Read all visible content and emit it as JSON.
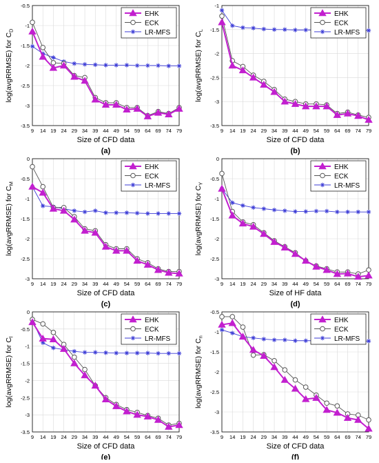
{
  "figure": {
    "panels_note": "",
    "colors": {
      "EHK": "#c21fcf",
      "ECK": "#555555",
      "LR-MFS": "#3b3bd6",
      "grid": "#d9d9d9",
      "axis": "#000000"
    }
  },
  "chart_data": [
    {
      "id": "a",
      "type": "line",
      "panel_label": "(a)",
      "ylabel_prefix": "log(avgRRMSE) for C",
      "ylabel_sub": "D",
      "xlabel": "Size of CFD data",
      "x": [
        9,
        14,
        19,
        24,
        29,
        34,
        39,
        44,
        49,
        54,
        59,
        64,
        69,
        74,
        79
      ],
      "xlim": [
        9,
        79
      ],
      "ylim": [
        -3.5,
        -0.5
      ],
      "yticks": [
        -3.5,
        -3,
        -2.5,
        -2,
        -1.5,
        -1,
        -0.5
      ],
      "ytick_labels": [
        "-3.5",
        "-3",
        "-2.5",
        "-2",
        "-1.5",
        "-1",
        "-0.5"
      ],
      "legend": "top-right",
      "grid": true,
      "series": [
        {
          "name": "EHK",
          "marker": "triangle",
          "values": [
            -1.15,
            -1.78,
            -2.06,
            -2.0,
            -2.28,
            -2.38,
            -2.85,
            -2.98,
            -2.98,
            -3.1,
            -3.08,
            -3.27,
            -3.18,
            -3.22,
            -3.08
          ]
        },
        {
          "name": "ECK",
          "marker": "circle",
          "values": [
            -0.92,
            -1.55,
            -1.93,
            -1.95,
            -2.25,
            -2.3,
            -2.8,
            -2.93,
            -2.93,
            -3.05,
            -3.05,
            -3.25,
            -3.15,
            -3.2,
            -3.05
          ]
        },
        {
          "name": "LR-MFS",
          "marker": "star",
          "values": [
            -1.52,
            -1.7,
            -1.8,
            -1.9,
            -1.95,
            -1.97,
            -1.98,
            -1.99,
            -1.99,
            -1.99,
            -2.0,
            -2.0,
            -2.0,
            -2.01,
            -2.01
          ]
        }
      ]
    },
    {
      "id": "b",
      "type": "line",
      "panel_label": "(b)",
      "ylabel_prefix": "log(avgRRMSE) for C",
      "ylabel_sub": "L",
      "xlabel": "Size of CFD data",
      "x": [
        9,
        14,
        19,
        24,
        29,
        34,
        39,
        44,
        49,
        54,
        59,
        64,
        69,
        74,
        79
      ],
      "xlim": [
        9,
        79
      ],
      "ylim": [
        -3.5,
        -1
      ],
      "yticks": [
        -3.5,
        -3,
        -2.5,
        -2,
        -1.5,
        -1
      ],
      "ytick_labels": [
        "-3.5",
        "-3",
        "-2.5",
        "-2",
        "-1.5",
        "-1"
      ],
      "legend": "top-right",
      "grid": true,
      "series": [
        {
          "name": "EHK",
          "marker": "triangle",
          "values": [
            -1.35,
            -2.25,
            -2.35,
            -2.5,
            -2.65,
            -2.8,
            -3.0,
            -3.05,
            -3.1,
            -3.1,
            -3.1,
            -3.28,
            -3.25,
            -3.3,
            -3.38
          ]
        },
        {
          "name": "ECK",
          "marker": "circle",
          "values": [
            -1.22,
            -2.15,
            -2.27,
            -2.45,
            -2.58,
            -2.75,
            -2.95,
            -3.0,
            -3.05,
            -3.05,
            -3.07,
            -3.25,
            -3.22,
            -3.28,
            -3.33
          ]
        },
        {
          "name": "LR-MFS",
          "marker": "star",
          "values": [
            -1.1,
            -1.42,
            -1.46,
            -1.47,
            -1.49,
            -1.5,
            -1.5,
            -1.51,
            -1.51,
            -1.51,
            -1.52,
            -1.52,
            -1.52,
            -1.52,
            -1.52
          ]
        }
      ]
    },
    {
      "id": "c",
      "type": "line",
      "panel_label": "(c)",
      "ylabel_prefix": "log(avgRRMSE) for C",
      "ylabel_sub": "M",
      "xlabel": "Size of CFD data",
      "x": [
        9,
        14,
        19,
        24,
        29,
        34,
        39,
        44,
        49,
        54,
        59,
        64,
        69,
        74,
        79
      ],
      "xlim": [
        9,
        79
      ],
      "ylim": [
        -3,
        0
      ],
      "yticks": [
        -3,
        -2.5,
        -2,
        -1.5,
        -1,
        -0.5,
        0
      ],
      "ytick_labels": [
        "-3",
        "-2.5",
        "-2",
        "-1.5",
        "-1",
        "-0.5",
        "0"
      ],
      "legend": "top-right",
      "grid": true,
      "series": [
        {
          "name": "EHK",
          "marker": "triangle",
          "values": [
            -0.7,
            -0.85,
            -1.25,
            -1.3,
            -1.52,
            -1.8,
            -1.85,
            -2.2,
            -2.3,
            -2.3,
            -2.55,
            -2.65,
            -2.78,
            -2.85,
            -2.87
          ]
        },
        {
          "name": "ECK",
          "marker": "circle",
          "values": [
            -0.2,
            -0.7,
            -1.22,
            -1.22,
            -1.45,
            -1.75,
            -1.8,
            -2.15,
            -2.25,
            -2.25,
            -2.5,
            -2.6,
            -2.75,
            -2.82,
            -2.82
          ]
        },
        {
          "name": "LR-MFS",
          "marker": "star",
          "values": [
            -0.7,
            -1.18,
            -1.2,
            -1.25,
            -1.3,
            -1.33,
            -1.3,
            -1.35,
            -1.35,
            -1.35,
            -1.36,
            -1.37,
            -1.37,
            -1.37,
            -1.37
          ]
        }
      ]
    },
    {
      "id": "d",
      "type": "line",
      "panel_label": "(d)",
      "ylabel_prefix": "log(avgRRMSE) for C",
      "ylabel_sub": "Y",
      "xlabel": "Size of HF data",
      "x": [
        9,
        14,
        19,
        24,
        29,
        34,
        39,
        44,
        49,
        54,
        59,
        64,
        69,
        74,
        79
      ],
      "xlim": [
        9,
        79
      ],
      "ylim": [
        -3,
        0
      ],
      "yticks": [
        -3,
        -2.5,
        -2,
        -1.5,
        -1,
        -0.5,
        0
      ],
      "ytick_labels": [
        "-3",
        "-2.5",
        "-2",
        "-1.5",
        "-1",
        "-0.5",
        "0"
      ],
      "legend": "top-right",
      "grid": true,
      "series": [
        {
          "name": "EHK",
          "marker": "triangle",
          "values": [
            -0.75,
            -1.42,
            -1.62,
            -1.7,
            -1.88,
            -2.08,
            -2.22,
            -2.38,
            -2.55,
            -2.7,
            -2.78,
            -2.88,
            -2.87,
            -2.95,
            -2.92
          ]
        },
        {
          "name": "ECK",
          "marker": "circle",
          "values": [
            -0.37,
            -1.32,
            -1.58,
            -1.65,
            -1.85,
            -2.05,
            -2.2,
            -2.35,
            -2.55,
            -2.68,
            -2.75,
            -2.83,
            -2.83,
            -2.88,
            -2.78
          ]
        },
        {
          "name": "LR-MFS",
          "marker": "star",
          "values": [
            -0.75,
            -1.1,
            -1.17,
            -1.22,
            -1.25,
            -1.28,
            -1.3,
            -1.32,
            -1.32,
            -1.31,
            -1.31,
            -1.33,
            -1.33,
            -1.33,
            -1.33
          ]
        }
      ]
    },
    {
      "id": "e",
      "type": "line",
      "panel_label": "(e)",
      "ylabel_prefix": "log(avgRRMSE) for C",
      "ylabel_sub": "l",
      "xlabel": "Size of CFD data",
      "x": [
        9,
        14,
        19,
        24,
        29,
        34,
        39,
        44,
        49,
        54,
        59,
        64,
        69,
        74,
        79
      ],
      "xlim": [
        9,
        79
      ],
      "ylim": [
        -3.5,
        0
      ],
      "yticks": [
        -3.5,
        -3,
        -2.5,
        -2,
        -1.5,
        -1,
        -0.5,
        0
      ],
      "ytick_labels": [
        "-3.5",
        "-3",
        "-2.5",
        "-2",
        "-1.5",
        "-1",
        "-0.5",
        "0"
      ],
      "legend": "top-right",
      "grid": true,
      "series": [
        {
          "name": "EHK",
          "marker": "triangle",
          "values": [
            -0.3,
            -0.78,
            -0.8,
            -1.08,
            -1.5,
            -1.85,
            -2.15,
            -2.55,
            -2.75,
            -2.9,
            -3.0,
            -3.05,
            -3.15,
            -3.35,
            -3.3
          ]
        },
        {
          "name": "ECK",
          "marker": "circle",
          "values": [
            -0.22,
            -0.35,
            -0.6,
            -0.95,
            -1.32,
            -1.68,
            -2.15,
            -2.5,
            -2.7,
            -2.85,
            -2.93,
            -3.02,
            -3.1,
            -3.3,
            -3.25
          ]
        },
        {
          "name": "LR-MFS",
          "marker": "star",
          "values": [
            -0.25,
            -0.9,
            -1.05,
            -1.1,
            -1.15,
            -1.18,
            -1.18,
            -1.19,
            -1.2,
            -1.2,
            -1.2,
            -1.2,
            -1.21,
            -1.21,
            -1.21
          ]
        }
      ]
    },
    {
      "id": "f",
      "type": "line",
      "panel_label": "(f)",
      "ylabel_prefix": "log(avgRRMSE) for C",
      "ylabel_sub": "n",
      "xlabel": "Size of CFD data",
      "x": [
        9,
        14,
        19,
        24,
        29,
        34,
        39,
        44,
        49,
        54,
        59,
        64,
        69,
        74,
        79
      ],
      "xlim": [
        9,
        79
      ],
      "ylim": [
        -3.5,
        -0.5
      ],
      "yticks": [
        -3.5,
        -3,
        -2.5,
        -2,
        -1.5,
        -1,
        -0.5
      ],
      "ytick_labels": [
        "-3.5",
        "-3",
        "-2.5",
        "-2",
        "-1.5",
        "-1",
        "-0.5"
      ],
      "legend": "top-right",
      "grid": true,
      "series": [
        {
          "name": "EHK",
          "marker": "triangle",
          "values": [
            -0.82,
            -0.78,
            -1.12,
            -1.45,
            -1.6,
            -1.88,
            -2.2,
            -2.42,
            -2.68,
            -2.65,
            -2.95,
            -3.02,
            -3.15,
            -3.2,
            -3.42
          ]
        },
        {
          "name": "ECK",
          "marker": "circle",
          "values": [
            -0.62,
            -0.62,
            -0.88,
            -1.58,
            -1.57,
            -1.72,
            -1.95,
            -2.2,
            -2.38,
            -2.58,
            -2.78,
            -2.85,
            -3.05,
            -3.08,
            -3.2
          ]
        },
        {
          "name": "LR-MFS",
          "marker": "star",
          "values": [
            -0.95,
            -1.03,
            -1.12,
            -1.15,
            -1.18,
            -1.2,
            -1.2,
            -1.22,
            -1.22,
            -1.22,
            -1.22,
            -1.23,
            -1.23,
            -1.23,
            -1.23
          ]
        }
      ]
    }
  ]
}
